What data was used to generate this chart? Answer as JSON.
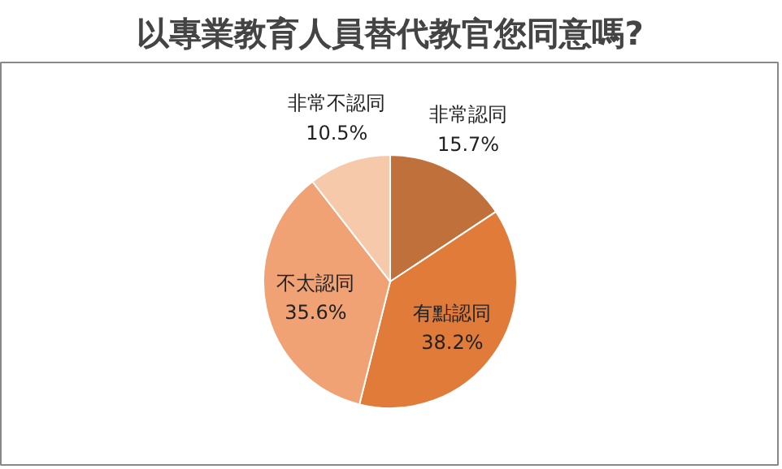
{
  "chart_data": {
    "type": "pie",
    "title": "以專業教育人員替代教官您同意嗎?",
    "categories": [
      "非常認同",
      "有點認同",
      "不太認同",
      "非常不認同"
    ],
    "values": [
      15.7,
      38.2,
      35.6,
      10.5
    ],
    "value_labels": [
      "15.7%",
      "38.2%",
      "35.6%",
      "10.5%"
    ],
    "colors": [
      "#c0703a",
      "#e07b39",
      "#f0a274",
      "#f6c9aa"
    ]
  }
}
